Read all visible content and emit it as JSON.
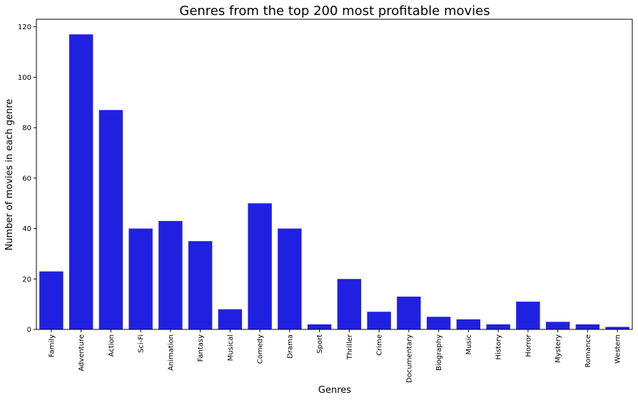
{
  "chart_data": {
    "type": "bar",
    "title": "Genres from the top 200 most profitable movies",
    "xlabel": "Genres",
    "ylabel": "Number of movies in each genre",
    "categories": [
      "Family",
      "Adventure",
      "Action",
      "Sci-Fi",
      "Animation",
      "Fantasy",
      "Musical",
      "Comedy",
      "Drama",
      "Sport",
      "Thriller",
      "Crime",
      "Documentary",
      "Biography",
      "Music",
      "History",
      "Horror",
      "Mystery",
      "Romance",
      "Western"
    ],
    "values": [
      23,
      117,
      87,
      40,
      43,
      35,
      8,
      50,
      40,
      2,
      20,
      7,
      13,
      5,
      4,
      2,
      11,
      3,
      2,
      1
    ],
    "ylim": [
      0,
      123
    ],
    "yticks": [
      0,
      20,
      40,
      60,
      80,
      100,
      120
    ],
    "grid": false,
    "bar_color": "#2020e0"
  }
}
